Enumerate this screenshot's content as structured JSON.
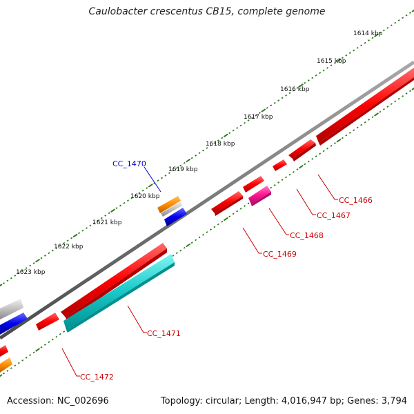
{
  "title": "Caulobacter crescentus CB15, complete genome",
  "footer": {
    "accession": "Accession: NC_002696",
    "summary": "Topology: circular; Length: 4,016,947 bp; Genes: 3,794"
  },
  "colors": {
    "backbone": "#7a7a7a",
    "tick": "#2e7d1e",
    "forward_gene": "#ff0000",
    "label_blue": "#0000cc",
    "label_red": "#cc0000",
    "cyan": "#00c8c8",
    "magenta": "#ff1493",
    "orange": "#ff8c00",
    "grey": "#c0c0c0",
    "blue": "#0000ee"
  },
  "ruler": {
    "unit": "kbp",
    "labels": [
      "1614 kbp",
      "1615 kbp",
      "1616 kbp",
      "1617 kbp",
      "1618 kbp",
      "1619 kbp",
      "1620 kbp",
      "1621 kbp",
      "1622 kbp",
      "1623 kbp"
    ]
  },
  "genes": [
    {
      "name": "CC_1466",
      "strand": "+",
      "color": "red"
    },
    {
      "name": "CC_1467",
      "strand": "+",
      "color": "red"
    },
    {
      "name": "CC_1468",
      "strand": "-",
      "color": "magenta"
    },
    {
      "name": "CC_1469",
      "strand": "+",
      "color": "red"
    },
    {
      "name": "CC_1470",
      "strand": "-",
      "color": "orange"
    },
    {
      "name": "CC_1471",
      "strand": "-",
      "color": "cyan"
    },
    {
      "name": "CC_1472",
      "strand": "+",
      "color": "red"
    }
  ],
  "gene_labels": {
    "cc1466": "CC_1466",
    "cc1467": "CC_1467",
    "cc1468": "CC_1468",
    "cc1469": "CC_1469",
    "cc1470": "CC_1470",
    "cc1471": "CC_1471",
    "cc1472": "CC_1472"
  }
}
